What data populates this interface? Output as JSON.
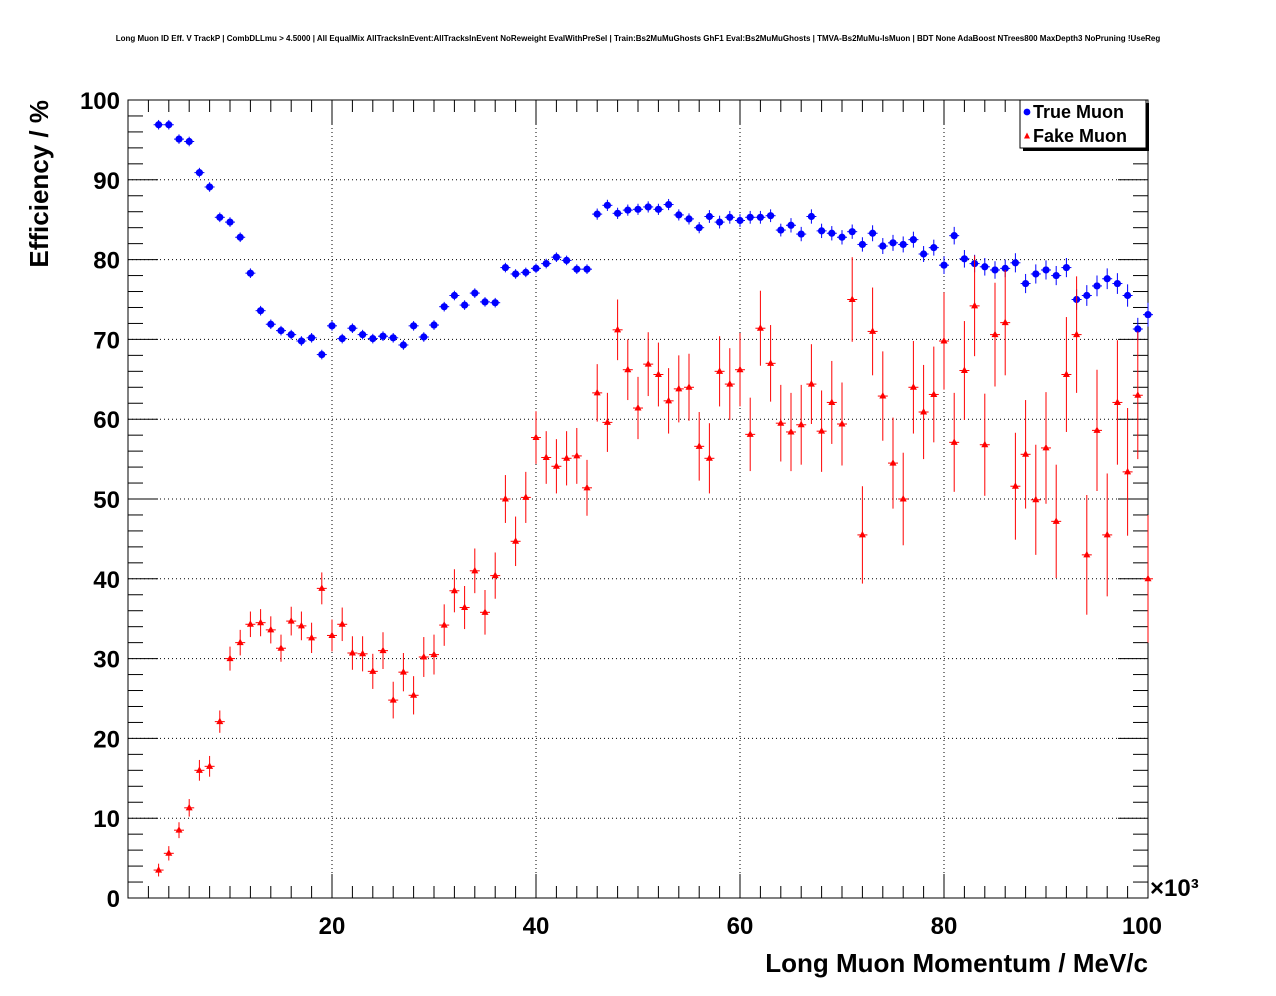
{
  "chart_data": {
    "type": "scatter",
    "title": "Long Muon ID Eff. V TrackP | CombDLLmu > 4.5000 | All EqualMix AllTracksInEvent:AllTracksInEvent NoReweight EvalWithPreSel | Train:Bs2MuMuGhosts GhF1 Eval:Bs2MuMuGhosts | TMVA-Bs2MuMu-IsMuon | BDT None AdaBoost NTrees800 MaxDepth3 NoPruning !UseReg",
    "xlabel": "Long Muon Momentum / MeV/c",
    "ylabel": "Efficiency / %",
    "x_multiplier_label": "×10³",
    "xlim": [
      0,
      100000
    ],
    "ylim": [
      0,
      100
    ],
    "x_ticks": [
      20000,
      40000,
      60000,
      80000,
      100000
    ],
    "x_tick_labels": [
      "20",
      "40",
      "60",
      "80",
      "100"
    ],
    "y_ticks": [
      0,
      10,
      20,
      30,
      40,
      50,
      60,
      70,
      80,
      90,
      100
    ],
    "y_tick_labels": [
      "0",
      "10",
      "20",
      "30",
      "40",
      "50",
      "60",
      "70",
      "80",
      "90",
      "100"
    ],
    "grid": true,
    "legend_position": "top-right",
    "x": [
      3000,
      4000,
      5000,
      6000,
      7000,
      8000,
      9000,
      10000,
      11000,
      12000,
      13000,
      14000,
      15000,
      16000,
      17000,
      18000,
      19000,
      20000,
      21000,
      22000,
      23000,
      24000,
      25000,
      26000,
      27000,
      28000,
      29000,
      30000,
      31000,
      32000,
      33000,
      34000,
      35000,
      36000,
      37000,
      38000,
      39000,
      40000,
      41000,
      42000,
      43000,
      44000,
      45000,
      46000,
      47000,
      48000,
      49000,
      50000,
      51000,
      52000,
      53000,
      54000,
      55000,
      56000,
      57000,
      58000,
      59000,
      60000,
      61000,
      62000,
      63000,
      64000,
      65000,
      66000,
      67000,
      68000,
      69000,
      70000,
      71000,
      72000,
      73000,
      74000,
      75000,
      76000,
      77000,
      78000,
      79000,
      80000,
      81000,
      82000,
      83000,
      84000,
      85000,
      86000,
      87000,
      88000,
      89000,
      90000,
      91000,
      92000,
      93000,
      94000,
      95000,
      96000,
      97000,
      98000,
      99000,
      100000
    ],
    "series": [
      {
        "name": "True Muon",
        "color": "#0000ff",
        "marker": "circle",
        "values": [
          96.9,
          96.9,
          95.1,
          94.8,
          90.9,
          89.1,
          85.3,
          84.7,
          82.8,
          78.3,
          73.6,
          71.9,
          71.1,
          70.6,
          69.8,
          70.2,
          68.1,
          71.7,
          70.1,
          71.4,
          70.6,
          70.1,
          70.4,
          70.2,
          69.3,
          71.7,
          70.3,
          71.8,
          74.1,
          75.5,
          74.3,
          75.8,
          74.7,
          74.6,
          79.0,
          78.2,
          78.4,
          78.9,
          79.5,
          80.3,
          79.9,
          78.8,
          78.8,
          85.7,
          86.8,
          85.8,
          86.2,
          86.3,
          86.6,
          86.3,
          86.9,
          85.6,
          85.1,
          84.0,
          85.4,
          84.7,
          85.3,
          84.9,
          85.3,
          85.3,
          85.5,
          83.7,
          84.3,
          83.2,
          85.4,
          83.6,
          83.3,
          82.8,
          83.5,
          81.9,
          83.3,
          81.7,
          82.1,
          81.9,
          82.5,
          80.7,
          81.5,
          79.3,
          83.0,
          80.1,
          79.5,
          79.1,
          78.7,
          78.9,
          79.6,
          77.0,
          78.2,
          78.7,
          78.0,
          79.0,
          75.0,
          75.5,
          76.7,
          77.6,
          77.0,
          75.5,
          71.3,
          73.1
        ],
        "errors": [
          0.6,
          0.6,
          0.6,
          0.6,
          0.6,
          0.6,
          0.6,
          0.6,
          0.6,
          0.6,
          0.6,
          0.6,
          0.6,
          0.6,
          0.6,
          0.6,
          0.6,
          0.6,
          0.6,
          0.6,
          0.6,
          0.6,
          0.6,
          0.6,
          0.6,
          0.6,
          0.6,
          0.6,
          0.6,
          0.6,
          0.6,
          0.6,
          0.6,
          0.6,
          0.6,
          0.6,
          0.6,
          0.6,
          0.6,
          0.6,
          0.6,
          0.6,
          0.6,
          0.7,
          0.7,
          0.7,
          0.7,
          0.7,
          0.7,
          0.7,
          0.7,
          0.7,
          0.7,
          0.7,
          0.8,
          0.8,
          0.8,
          0.8,
          0.8,
          0.8,
          0.8,
          0.8,
          0.9,
          0.9,
          0.9,
          0.9,
          0.9,
          0.9,
          0.9,
          0.9,
          1.0,
          1.0,
          1.0,
          1.0,
          1.0,
          1.0,
          1.0,
          1.1,
          1.1,
          1.1,
          1.1,
          1.1,
          1.1,
          1.1,
          1.2,
          1.2,
          1.2,
          1.2,
          1.2,
          1.2,
          1.3,
          1.3,
          1.3,
          1.3,
          1.3,
          1.4,
          1.4,
          1.5
        ]
      },
      {
        "name": "Fake Muon",
        "color": "#ff0000",
        "marker": "triangle",
        "values": [
          3.5,
          5.6,
          8.5,
          11.3,
          16.0,
          16.5,
          22.1,
          30.0,
          32.0,
          34.3,
          34.5,
          33.6,
          31.3,
          34.7,
          34.1,
          32.6,
          38.8,
          32.9,
          34.3,
          30.7,
          30.6,
          28.4,
          31.0,
          24.8,
          28.3,
          25.4,
          30.2,
          30.5,
          34.2,
          38.5,
          36.4,
          41.0,
          35.8,
          40.4,
          50.0,
          44.7,
          50.2,
          57.7,
          55.2,
          54.1,
          55.1,
          55.4,
          51.4,
          63.3,
          59.6,
          71.2,
          66.2,
          61.4,
          66.9,
          65.6,
          62.3,
          63.8,
          64.0,
          56.6,
          55.1,
          66.0,
          64.4,
          66.2,
          58.1,
          71.4,
          67.0,
          59.5,
          58.4,
          59.3,
          64.4,
          58.5,
          62.1,
          59.4,
          75.0,
          45.5,
          71.0,
          62.9,
          54.5,
          50.0,
          64.0,
          60.9,
          63.1,
          69.8,
          57.1,
          66.1,
          74.2,
          56.8,
          70.6,
          72.1,
          51.6,
          55.6,
          49.9,
          56.4,
          47.2,
          65.6,
          70.6,
          43.0,
          58.6,
          45.5,
          62.1,
          53.4,
          63.0,
          40.0
        ],
        "errors": [
          0.8,
          0.9,
          1.0,
          1.1,
          1.3,
          1.3,
          1.4,
          1.5,
          1.6,
          1.6,
          1.7,
          1.7,
          1.7,
          1.8,
          1.8,
          1.9,
          2.0,
          2.0,
          2.1,
          2.1,
          2.2,
          2.2,
          2.3,
          2.3,
          2.4,
          2.4,
          2.5,
          2.5,
          2.6,
          2.7,
          2.7,
          2.8,
          2.8,
          2.9,
          3.0,
          3.1,
          3.2,
          3.3,
          3.3,
          3.4,
          3.4,
          3.5,
          3.5,
          3.6,
          3.7,
          3.8,
          3.8,
          3.9,
          4.0,
          4.0,
          4.1,
          4.2,
          4.2,
          4.3,
          4.4,
          4.4,
          4.5,
          4.6,
          4.6,
          4.7,
          4.8,
          4.8,
          4.9,
          5.0,
          5.0,
          5.1,
          5.2,
          5.2,
          5.3,
          6.1,
          5.5,
          5.6,
          5.7,
          5.8,
          5.8,
          5.9,
          6.0,
          6.1,
          6.2,
          6.2,
          6.3,
          6.4,
          6.5,
          6.6,
          6.7,
          6.8,
          6.9,
          7.0,
          7.1,
          7.2,
          7.3,
          7.5,
          7.6,
          7.7,
          7.8,
          8.0,
          8.0,
          8.0
        ]
      }
    ]
  }
}
